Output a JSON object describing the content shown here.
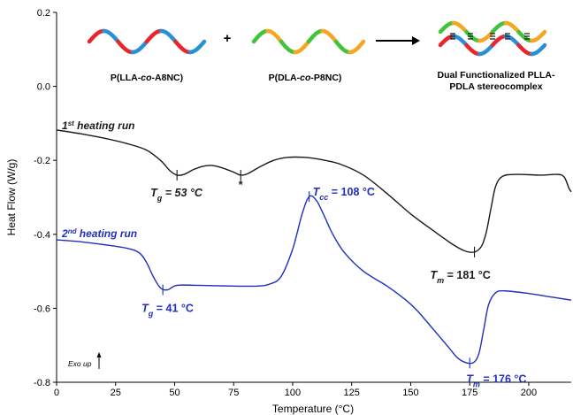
{
  "chart_data": {
    "type": "line",
    "xlabel": "Temperature (°C)",
    "ylabel": "Heat Flow (W/g)",
    "xlim": [
      0,
      218
    ],
    "ylim": [
      -0.8,
      0.2
    ],
    "x_ticks": [
      0,
      25,
      50,
      75,
      100,
      125,
      150,
      175,
      200
    ],
    "x_tick_labels": [
      "0",
      "25",
      "50",
      "75",
      "100",
      "125",
      "150",
      "175",
      "200"
    ],
    "y_ticks": [
      0.2,
      0.0,
      -0.2,
      -0.4,
      -0.6,
      -0.8
    ],
    "y_tick_labels": [
      "0.2",
      "0.0",
      "-0.2",
      "-0.4",
      "-0.6",
      "-0.8"
    ],
    "grid": false,
    "series": [
      {
        "name": "1st heating run",
        "label_main": "1",
        "label_sup": "st",
        "label_rest": " heating run",
        "color": "#1a1a1a",
        "points": [
          [
            0,
            -0.118
          ],
          [
            10,
            -0.128
          ],
          [
            20,
            -0.14
          ],
          [
            30,
            -0.155
          ],
          [
            38,
            -0.172
          ],
          [
            44,
            -0.2
          ],
          [
            48,
            -0.228
          ],
          [
            51,
            -0.24
          ],
          [
            54,
            -0.238
          ],
          [
            58,
            -0.225
          ],
          [
            62,
            -0.216
          ],
          [
            66,
            -0.214
          ],
          [
            70,
            -0.22
          ],
          [
            75,
            -0.232
          ],
          [
            78,
            -0.24
          ],
          [
            81,
            -0.236
          ],
          [
            86,
            -0.218
          ],
          [
            92,
            -0.2
          ],
          [
            98,
            -0.192
          ],
          [
            105,
            -0.192
          ],
          [
            112,
            -0.198
          ],
          [
            120,
            -0.21
          ],
          [
            130,
            -0.24
          ],
          [
            140,
            -0.29
          ],
          [
            150,
            -0.345
          ],
          [
            160,
            -0.392
          ],
          [
            168,
            -0.428
          ],
          [
            173,
            -0.445
          ],
          [
            177,
            -0.448
          ],
          [
            180,
            -0.432
          ],
          [
            182,
            -0.395
          ],
          [
            184,
            -0.33
          ],
          [
            186,
            -0.27
          ],
          [
            189,
            -0.243
          ],
          [
            195,
            -0.238
          ],
          [
            205,
            -0.24
          ],
          [
            212,
            -0.238
          ],
          [
            215,
            -0.245
          ],
          [
            217,
            -0.275
          ],
          [
            218,
            -0.285
          ]
        ]
      },
      {
        "name": "2nd heating run",
        "label_main": "2",
        "label_sup": "nd",
        "label_rest": " heating run",
        "color": "#1f2fbf",
        "points": [
          [
            0,
            -0.415
          ],
          [
            10,
            -0.42
          ],
          [
            20,
            -0.428
          ],
          [
            30,
            -0.438
          ],
          [
            35,
            -0.45
          ],
          [
            38,
            -0.475
          ],
          [
            41,
            -0.515
          ],
          [
            44,
            -0.545
          ],
          [
            47,
            -0.55
          ],
          [
            51,
            -0.538
          ],
          [
            60,
            -0.538
          ],
          [
            75,
            -0.54
          ],
          [
            85,
            -0.54
          ],
          [
            90,
            -0.535
          ],
          [
            95,
            -0.515
          ],
          [
            100,
            -0.44
          ],
          [
            104,
            -0.345
          ],
          [
            107,
            -0.298
          ],
          [
            110,
            -0.308
          ],
          [
            113,
            -0.345
          ],
          [
            117,
            -0.4
          ],
          [
            122,
            -0.45
          ],
          [
            130,
            -0.5
          ],
          [
            140,
            -0.54
          ],
          [
            148,
            -0.578
          ],
          [
            153,
            -0.608
          ],
          [
            160,
            -0.66
          ],
          [
            166,
            -0.705
          ],
          [
            170,
            -0.735
          ],
          [
            174,
            -0.748
          ],
          [
            177,
            -0.745
          ],
          [
            179,
            -0.72
          ],
          [
            181,
            -0.655
          ],
          [
            183,
            -0.59
          ],
          [
            186,
            -0.558
          ],
          [
            190,
            -0.553
          ],
          [
            200,
            -0.56
          ],
          [
            210,
            -0.57
          ],
          [
            218,
            -0.578
          ]
        ]
      }
    ],
    "annotations": [
      {
        "id": "tg1",
        "main": "T",
        "sub": "g",
        "value": " = 53 °C",
        "italic_value": true,
        "color": "#1a1a1a",
        "x": 51,
        "y": -0.24
      },
      {
        "id": "star",
        "text": "*",
        "color": "#1a1a1a",
        "x": 78,
        "y": -0.24
      },
      {
        "id": "tm1",
        "main": "T",
        "sub": "m",
        "value": " = 181 °C",
        "italic_value": false,
        "color": "#1a1a1a",
        "x": 177,
        "y": -0.448
      },
      {
        "id": "tcc2",
        "main": "T",
        "sub": "cc",
        "value": " = 108 °C",
        "italic_value": false,
        "color": "#1f2fbf",
        "x": 107,
        "y": -0.298
      },
      {
        "id": "tg2",
        "main": "T",
        "sub": "g",
        "value": " = 41 °C",
        "italic_value": false,
        "color": "#1f2fbf",
        "x": 45,
        "y": -0.55
      },
      {
        "id": "tm2",
        "main": "T",
        "sub": "m",
        "value": " = 176 °C",
        "italic_value": false,
        "color": "#1f2fbf",
        "x": 175,
        "y": -0.748
      }
    ]
  },
  "scheme": {
    "label_a_pre": "P(LLA-",
    "label_a_it": "co",
    "label_a_post": "-A8NC)",
    "label_b_pre": "P(DLA-",
    "label_b_it": "co",
    "label_b_post": "-P8NC)",
    "plus": "+",
    "label_c_line1": "Dual Functionalized PLLA-",
    "label_c_line2": "PDLA stereocomplex",
    "colors": {
      "red": "#e8262a",
      "blue": "#2b8fd6",
      "green": "#3fc43a",
      "orange": "#f5a623"
    }
  },
  "exo_label": "Exo up"
}
